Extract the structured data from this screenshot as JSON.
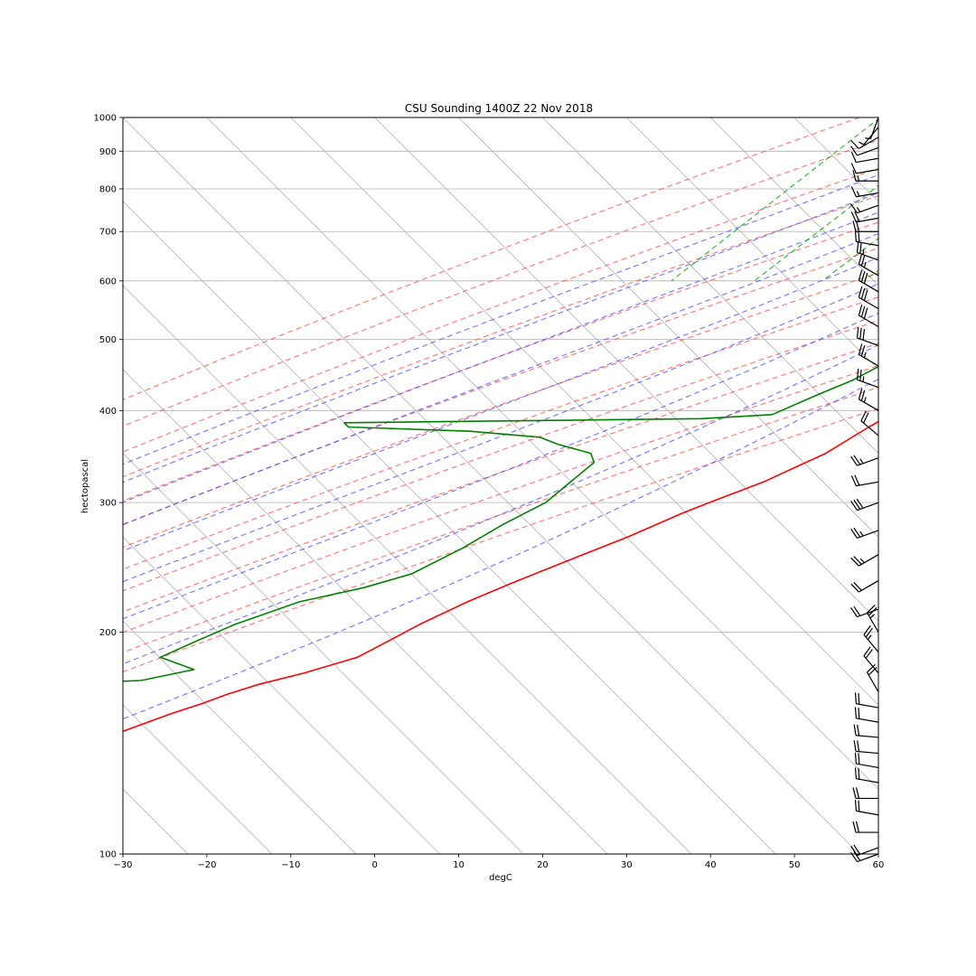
{
  "chart_data": {
    "type": "skew-t",
    "title": "CSU Sounding 1400Z 22 Nov 2018",
    "xlabel": "degC",
    "ylabel": "hectopascal",
    "xlim": [
      -30,
      60
    ],
    "ylim": [
      1000,
      100
    ],
    "y_scale": "log",
    "x_ticks": [
      "−30",
      "−20",
      "−10",
      "0",
      "10",
      "20",
      "30",
      "40",
      "50",
      "60"
    ],
    "y_ticks": [
      "100",
      "200",
      "300",
      "400",
      "500",
      "600",
      "700",
      "800",
      "900",
      "1000"
    ],
    "grid": true,
    "series": [
      {
        "name": "temperature",
        "color": "#ff0000",
        "points": [
          [
            25.5,
            962
          ],
          [
            24.0,
            962
          ],
          [
            22.0,
            940
          ],
          [
            20.0,
            900
          ],
          [
            18.5,
            870
          ],
          [
            17.5,
            855
          ],
          [
            20.0,
            850
          ],
          [
            20.5,
            820
          ],
          [
            20.0,
            800
          ],
          [
            20.5,
            780
          ],
          [
            21.5,
            760
          ],
          [
            21.0,
            735
          ],
          [
            21.5,
            700
          ],
          [
            20.5,
            670
          ],
          [
            19.5,
            640
          ],
          [
            18.5,
            610
          ],
          [
            17.5,
            580
          ],
          [
            16.0,
            560
          ],
          [
            15.5,
            530
          ],
          [
            14.5,
            510
          ],
          [
            14.0,
            490
          ],
          [
            13.0,
            460
          ],
          [
            12.0,
            440
          ],
          [
            10.5,
            420
          ],
          [
            9.5,
            400
          ],
          [
            8.0,
            380
          ],
          [
            6.0,
            350
          ],
          [
            2.0,
            320
          ],
          [
            -2.0,
            300
          ],
          [
            -4.0,
            290
          ],
          [
            -7.5,
            270
          ],
          [
            -12.0,
            250
          ],
          [
            -16.0,
            233
          ],
          [
            -19.0,
            220
          ],
          [
            -22.0,
            205
          ],
          [
            -23.5,
            196
          ],
          [
            -25.5,
            185
          ],
          [
            -28.0,
            180
          ],
          [
            -30.0,
            176
          ],
          [
            -34.0,
            170
          ],
          [
            -36.5,
            165
          ],
          [
            -38.5,
            160
          ],
          [
            -41.0,
            155
          ],
          [
            -44.5,
            147
          ],
          [
            -47.0,
            142
          ],
          [
            -50.5,
            137
          ],
          [
            -53.0,
            132
          ],
          [
            -55.0,
            127
          ],
          [
            -57.5,
            122
          ],
          [
            -59.5,
            117
          ],
          [
            -61.5,
            113
          ],
          [
            -65.0,
            108
          ],
          [
            -67.0,
            103
          ],
          [
            -69.0,
            100
          ]
        ]
      },
      {
        "name": "dewpoint",
        "color": "#008000",
        "points": [
          [
            14.5,
            962
          ],
          [
            14.5,
            940
          ],
          [
            14.0,
            910
          ],
          [
            14.0,
            880
          ],
          [
            11.0,
            865
          ],
          [
            12.0,
            850
          ],
          [
            10.5,
            830
          ],
          [
            7.0,
            820
          ],
          [
            8.0,
            800
          ],
          [
            9.5,
            790
          ],
          [
            11.0,
            770
          ],
          [
            11.5,
            750
          ],
          [
            13.0,
            720
          ],
          [
            14.5,
            700
          ],
          [
            14.5,
            680
          ],
          [
            13.5,
            650
          ],
          [
            13.0,
            620
          ],
          [
            10.5,
            600
          ],
          [
            6.5,
            580
          ],
          [
            7.0,
            560
          ],
          [
            6.5,
            540
          ],
          [
            5.5,
            520
          ],
          [
            4.5,
            500
          ],
          [
            3.5,
            480
          ],
          [
            2.0,
            460
          ],
          [
            0.5,
            440
          ],
          [
            -2.0,
            420
          ],
          [
            -5.0,
            395
          ],
          [
            -13.0,
            390
          ],
          [
            -55.0,
            385
          ],
          [
            -54.0,
            380
          ],
          [
            -39.0,
            375
          ],
          [
            -30.0,
            368
          ],
          [
            -27.0,
            360
          ],
          [
            -22.0,
            350
          ],
          [
            -20.5,
            340
          ],
          [
            -21.0,
            320
          ],
          [
            -21.5,
            300
          ],
          [
            -24.0,
            280
          ],
          [
            -26.0,
            260
          ],
          [
            -29.0,
            240
          ],
          [
            -33.0,
            230
          ],
          [
            -39.0,
            220
          ],
          [
            -44.0,
            205
          ],
          [
            -46.5,
            195
          ],
          [
            -49.0,
            185
          ],
          [
            -43.5,
            178
          ],
          [
            -48.5,
            172
          ],
          [
            -77.0,
            167
          ],
          [
            -57.0,
            160
          ],
          [
            -59.0,
            155
          ],
          [
            -80.0,
            148
          ],
          [
            -63.5,
            140
          ],
          [
            -69.0,
            130
          ],
          [
            -73.5,
            122
          ],
          [
            -66.0,
            117
          ],
          [
            -77.0,
            112
          ],
          [
            -77.0,
            105
          ],
          [
            -78.0,
            100
          ]
        ]
      }
    ],
    "dry_adiabats_surface_temp_degC": [
      -30,
      -20,
      -10,
      0,
      10,
      20,
      30,
      40,
      50,
      60,
      70,
      80,
      90
    ],
    "moist_adiabats_surface_temp_degC": [
      -10,
      -5,
      0,
      5,
      10,
      15,
      20,
      25,
      30
    ],
    "mixing_ratio_lines_g_per_kg": [
      0.4,
      1,
      2,
      3,
      5,
      8,
      12,
      16,
      20
    ],
    "wind_barbs": [
      {
        "p": 1000,
        "speed_kt": 5,
        "dir_deg": 200
      },
      {
        "p": 970,
        "speed_kt": 5,
        "dir_deg": 220
      },
      {
        "p": 940,
        "speed_kt": 10,
        "dir_deg": 240
      },
      {
        "p": 910,
        "speed_kt": 10,
        "dir_deg": 250
      },
      {
        "p": 880,
        "speed_kt": 10,
        "dir_deg": 260
      },
      {
        "p": 850,
        "speed_kt": 10,
        "dir_deg": 260
      },
      {
        "p": 820,
        "speed_kt": 15,
        "dir_deg": 270
      },
      {
        "p": 790,
        "speed_kt": 15,
        "dir_deg": 260
      },
      {
        "p": 760,
        "speed_kt": 15,
        "dir_deg": 250
      },
      {
        "p": 730,
        "speed_kt": 20,
        "dir_deg": 260
      },
      {
        "p": 700,
        "speed_kt": 20,
        "dir_deg": 270
      },
      {
        "p": 670,
        "speed_kt": 20,
        "dir_deg": 280
      },
      {
        "p": 640,
        "speed_kt": 25,
        "dir_deg": 290
      },
      {
        "p": 610,
        "speed_kt": 25,
        "dir_deg": 300
      },
      {
        "p": 580,
        "speed_kt": 30,
        "dir_deg": 300
      },
      {
        "p": 550,
        "speed_kt": 30,
        "dir_deg": 300
      },
      {
        "p": 520,
        "speed_kt": 30,
        "dir_deg": 300
      },
      {
        "p": 490,
        "speed_kt": 30,
        "dir_deg": 290
      },
      {
        "p": 460,
        "speed_kt": 25,
        "dir_deg": 300
      },
      {
        "p": 430,
        "speed_kt": 25,
        "dir_deg": 290
      },
      {
        "p": 400,
        "speed_kt": 25,
        "dir_deg": 300
      },
      {
        "p": 370,
        "speed_kt": 20,
        "dir_deg": 310
      },
      {
        "p": 345,
        "speed_kt": 25,
        "dir_deg": 250
      },
      {
        "p": 320,
        "speed_kt": 20,
        "dir_deg": 260
      },
      {
        "p": 300,
        "speed_kt": 30,
        "dir_deg": 250
      },
      {
        "p": 275,
        "speed_kt": 25,
        "dir_deg": 250
      },
      {
        "p": 255,
        "speed_kt": 25,
        "dir_deg": 240
      },
      {
        "p": 235,
        "speed_kt": 20,
        "dir_deg": 240
      },
      {
        "p": 215,
        "speed_kt": 20,
        "dir_deg": 250
      },
      {
        "p": 200,
        "speed_kt": 25,
        "dir_deg": 330
      },
      {
        "p": 188,
        "speed_kt": 25,
        "dir_deg": 320
      },
      {
        "p": 176,
        "speed_kt": 20,
        "dir_deg": 320
      },
      {
        "p": 166,
        "speed_kt": 20,
        "dir_deg": 330
      },
      {
        "p": 158,
        "speed_kt": 20,
        "dir_deg": 280
      },
      {
        "p": 151,
        "speed_kt": 20,
        "dir_deg": 280
      },
      {
        "p": 144,
        "speed_kt": 20,
        "dir_deg": 275
      },
      {
        "p": 137,
        "speed_kt": 20,
        "dir_deg": 275
      },
      {
        "p": 131,
        "speed_kt": 20,
        "dir_deg": 280
      },
      {
        "p": 125,
        "speed_kt": 20,
        "dir_deg": 280
      },
      {
        "p": 119,
        "speed_kt": 20,
        "dir_deg": 270
      },
      {
        "p": 113,
        "speed_kt": 20,
        "dir_deg": 280
      },
      {
        "p": 107,
        "speed_kt": 20,
        "dir_deg": 270
      },
      {
        "p": 102,
        "speed_kt": 20,
        "dir_deg": 250
      },
      {
        "p": 100,
        "speed_kt": 20,
        "dir_deg": 250
      }
    ]
  }
}
